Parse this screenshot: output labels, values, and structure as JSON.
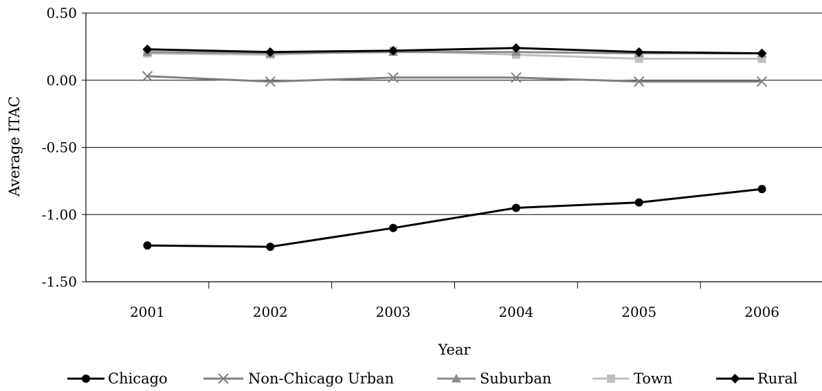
{
  "chart_data": {
    "type": "line",
    "title": "",
    "xlabel": "Year",
    "ylabel": "Average ITAC",
    "categories": [
      "2001",
      "2002",
      "2003",
      "2004",
      "2005",
      "2006"
    ],
    "ylim": [
      -1.5,
      0.5
    ],
    "yticks": [
      0.5,
      0.0,
      -0.5,
      -1.0,
      -1.5
    ],
    "ytick_labels": [
      "0.50",
      "0.00",
      "-0.50",
      "-1.00",
      "-1.50"
    ],
    "grid": "horizontal",
    "legend_position": "bottom",
    "series": [
      {
        "name": "Chicago",
        "color": "#000000",
        "marker": "circle",
        "values": [
          -1.23,
          -1.24,
          -1.1,
          -0.95,
          -0.91,
          -0.81
        ]
      },
      {
        "name": "Non-Chicago Urban",
        "color": "#808080",
        "marker": "x",
        "values": [
          0.03,
          -0.01,
          0.02,
          0.02,
          -0.01,
          -0.01
        ]
      },
      {
        "name": "Suburban",
        "color": "#8c8c8c",
        "marker": "triangle",
        "values": [
          0.21,
          0.2,
          0.21,
          0.21,
          0.2,
          0.2
        ]
      },
      {
        "name": "Town",
        "color": "#c0c0c0",
        "marker": "square",
        "values": [
          0.2,
          0.19,
          0.22,
          0.19,
          0.16,
          0.16
        ]
      },
      {
        "name": "Rural",
        "color": "#000000",
        "marker": "diamond",
        "values": [
          0.23,
          0.21,
          0.22,
          0.24,
          0.21,
          0.2
        ]
      }
    ]
  }
}
